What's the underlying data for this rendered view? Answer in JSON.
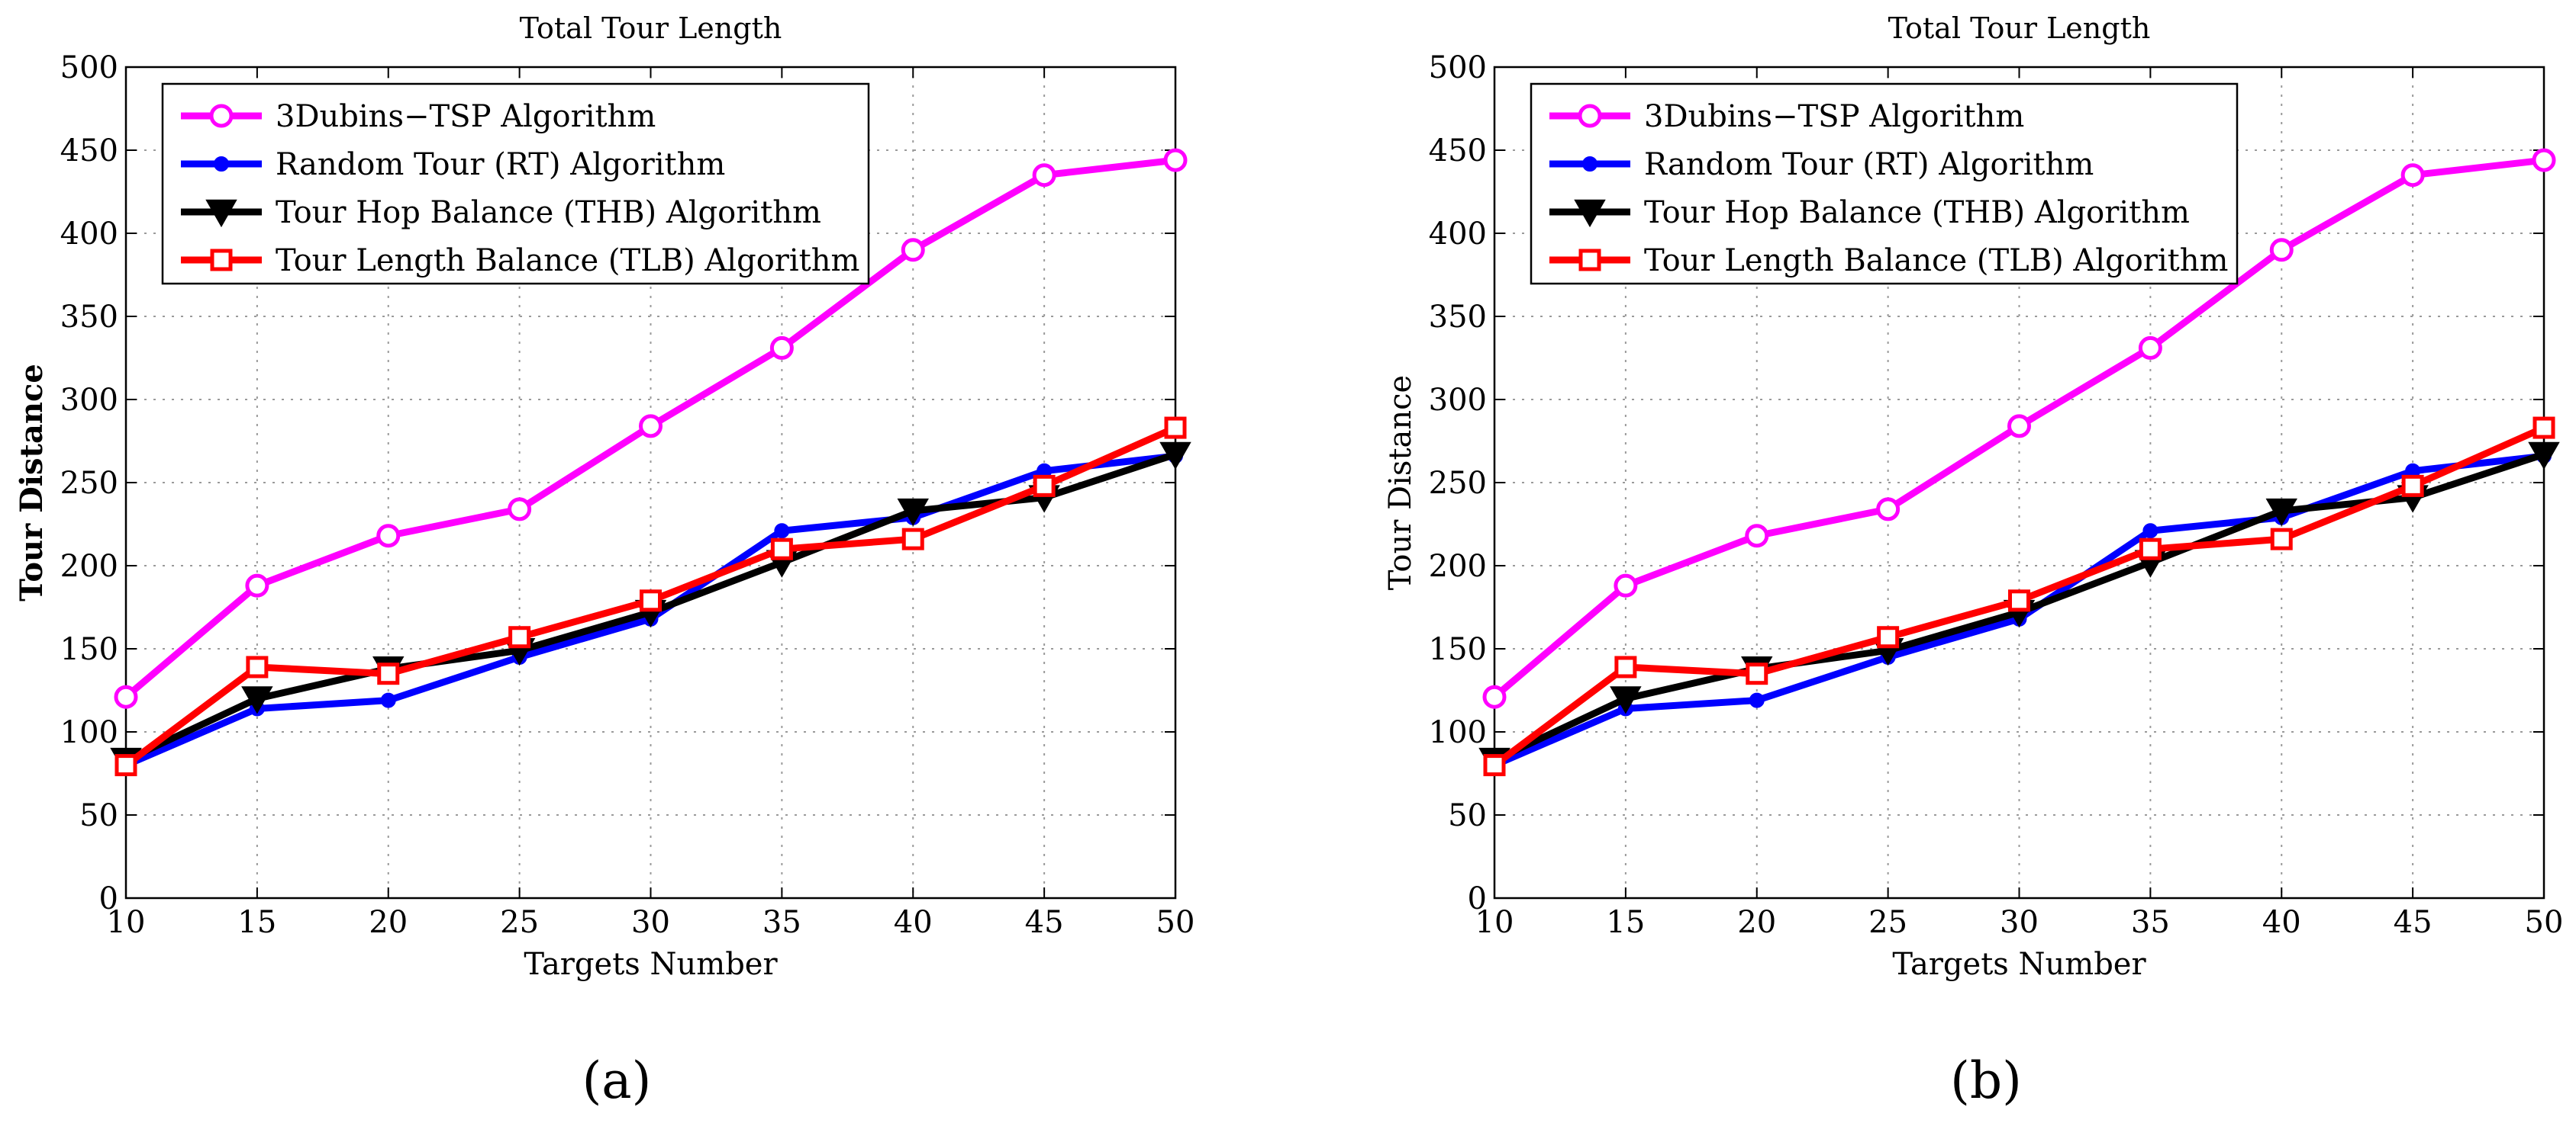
{
  "figure": {
    "panel_captions": [
      "(a)",
      "(b)"
    ]
  },
  "colors": {
    "magenta": "#ff00ff",
    "blue": "#0000ff",
    "black": "#000000",
    "red": "#ff0000"
  },
  "chart_data": [
    {
      "type": "line",
      "title": "Total Tour Length",
      "xlabel": "Targets Number",
      "ylabel": "Tour Distance",
      "ylabel_bold": true,
      "x": [
        10,
        15,
        20,
        25,
        30,
        35,
        40,
        45,
        50
      ],
      "xlim": [
        10,
        50
      ],
      "ylim": [
        0,
        500
      ],
      "xticks": [
        10,
        15,
        20,
        25,
        30,
        35,
        40,
        45,
        50
      ],
      "yticks": [
        0,
        50,
        100,
        150,
        200,
        250,
        300,
        350,
        400,
        450,
        500
      ],
      "grid": true,
      "legend_position": "top-left",
      "caption": "(a)",
      "series": [
        {
          "name": "3Dubins−TSP Algorithm",
          "color": "#ff00ff",
          "marker": "circle",
          "values": [
            121,
            188,
            218,
            234,
            284,
            331,
            390,
            435,
            444
          ]
        },
        {
          "name": "Random Tour (RT) Algorithm",
          "color": "#0000ff",
          "marker": "dot",
          "values": [
            80,
            114,
            119,
            145,
            168,
            221,
            229,
            257,
            266
          ]
        },
        {
          "name": "Tour Hop Balance (THB) Algorithm",
          "color": "#000000",
          "marker": "triangle-down",
          "values": [
            83,
            120,
            138,
            149,
            172,
            202,
            233,
            241,
            267
          ]
        },
        {
          "name": "Tour Length Balance (TLB) Algorithm",
          "color": "#ff0000",
          "marker": "square",
          "values": [
            80,
            139,
            135,
            157,
            179,
            210,
            216,
            248,
            283
          ]
        }
      ]
    },
    {
      "type": "line",
      "title": "Total Tour Length",
      "xlabel": "Targets Number",
      "ylabel": "Tour Distance",
      "ylabel_bold": false,
      "x": [
        10,
        15,
        20,
        25,
        30,
        35,
        40,
        45,
        50
      ],
      "xlim": [
        10,
        50
      ],
      "ylim": [
        0,
        500
      ],
      "xticks": [
        10,
        15,
        20,
        25,
        30,
        35,
        40,
        45,
        50
      ],
      "yticks": [
        0,
        50,
        100,
        150,
        200,
        250,
        300,
        350,
        400,
        450,
        500
      ],
      "grid": true,
      "legend_position": "top-left",
      "caption": "(b)",
      "series": [
        {
          "name": "3Dubins−TSP Algorithm",
          "color": "#ff00ff",
          "marker": "circle",
          "values": [
            121,
            188,
            218,
            234,
            284,
            331,
            390,
            435,
            444
          ]
        },
        {
          "name": "Random Tour (RT) Algorithm",
          "color": "#0000ff",
          "marker": "dot",
          "values": [
            80,
            114,
            119,
            145,
            168,
            221,
            229,
            257,
            266
          ]
        },
        {
          "name": "Tour Hop Balance (THB) Algorithm",
          "color": "#000000",
          "marker": "triangle-down",
          "values": [
            83,
            120,
            138,
            149,
            172,
            202,
            233,
            241,
            267
          ]
        },
        {
          "name": "Tour Length Balance (TLB) Algorithm",
          "color": "#ff0000",
          "marker": "square",
          "values": [
            80,
            139,
            135,
            157,
            179,
            210,
            216,
            248,
            283
          ]
        }
      ]
    }
  ]
}
